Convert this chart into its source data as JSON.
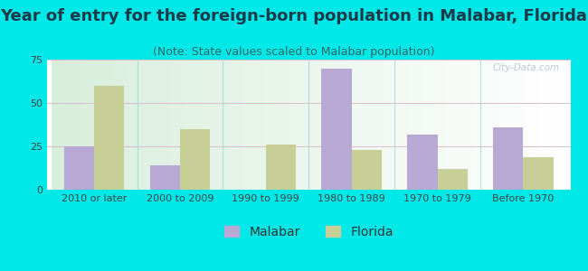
{
  "title": "Year of entry for the foreign-born population in Malabar, Florida",
  "subtitle": "(Note: State values scaled to Malabar population)",
  "categories": [
    "2010 or later",
    "2000 to 2009",
    "1990 to 1999",
    "1980 to 1989",
    "1970 to 1979",
    "Before 1970"
  ],
  "malabar_values": [
    25,
    14,
    0,
    70,
    32,
    36
  ],
  "florida_values": [
    60,
    35,
    26,
    23,
    12,
    19
  ],
  "malabar_color": "#b8a8d4",
  "florida_color": "#c8cf96",
  "background_color": "#00e8e8",
  "ylim": [
    0,
    75
  ],
  "yticks": [
    0,
    25,
    50,
    75
  ],
  "bar_width": 0.35,
  "title_fontsize": 13,
  "subtitle_fontsize": 9,
  "tick_fontsize": 8,
  "legend_fontsize": 10,
  "watermark": "City-Data.com"
}
